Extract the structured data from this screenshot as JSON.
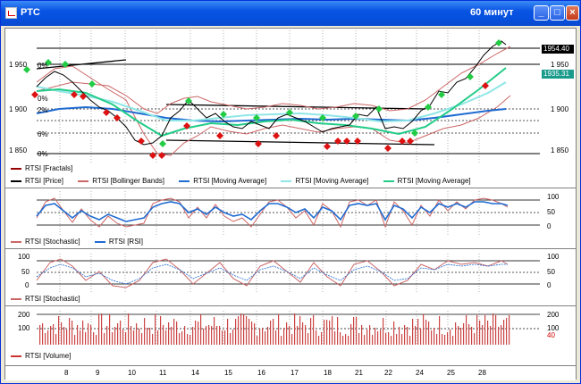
{
  "window": {
    "title": "РТС",
    "timeframe": "60 минут",
    "buttons": {
      "minimize": "_",
      "maximize": "□",
      "close": "×"
    }
  },
  "price_pane": {
    "y_labels": [
      "1 950",
      "1 900",
      "1 850"
    ],
    "right_labels": [
      "1 950",
      "1 900",
      "1 850"
    ],
    "last_price": "1954.40",
    "ma_value": "1935.31",
    "fib_labels": [
      "0%",
      "0%",
      "2%",
      "6%",
      "0%"
    ],
    "legend": [
      {
        "label": "RTSI [Fractals]",
        "color": "#990000"
      },
      {
        "label": "RTSI [Price]",
        "color": "#000000"
      },
      {
        "label": "RTSI [Bollinger Bands]",
        "color": "#cc6666"
      },
      {
        "label": "RTSI [Moving Average]",
        "color": "#1f6bd1"
      },
      {
        "label": "RTSI [Moving Average]",
        "color": "#8fe6e6"
      },
      {
        "label": "RTSI [Moving Average]",
        "color": "#22cc88"
      }
    ]
  },
  "osc1_pane": {
    "right_labels": [
      "100",
      "50",
      "0"
    ],
    "legend": [
      {
        "label": "RTSI [Stochastic]",
        "color": "#cc6666"
      },
      {
        "label": "RTSI [RSI]",
        "color": "#1f6bd1"
      }
    ]
  },
  "osc2_pane": {
    "left_labels": [
      "100",
      "50",
      "0"
    ],
    "right_labels": [
      "100",
      "50",
      "0"
    ],
    "legend": [
      {
        "label": "RTSI [Stochastic]",
        "color": "#cc6666"
      }
    ]
  },
  "volume_pane": {
    "left_labels": [
      "200",
      "100"
    ],
    "right_labels": [
      "200",
      "100"
    ],
    "last_volume": "40",
    "legend": [
      {
        "label": "RTSI [Volume]",
        "color": "#cc3333"
      }
    ]
  },
  "x_axis": {
    "ticks": [
      "8",
      "9",
      "10",
      "11",
      "14",
      "15",
      "16",
      "17",
      "18",
      "21",
      "22",
      "24",
      "25",
      "28"
    ]
  }
}
